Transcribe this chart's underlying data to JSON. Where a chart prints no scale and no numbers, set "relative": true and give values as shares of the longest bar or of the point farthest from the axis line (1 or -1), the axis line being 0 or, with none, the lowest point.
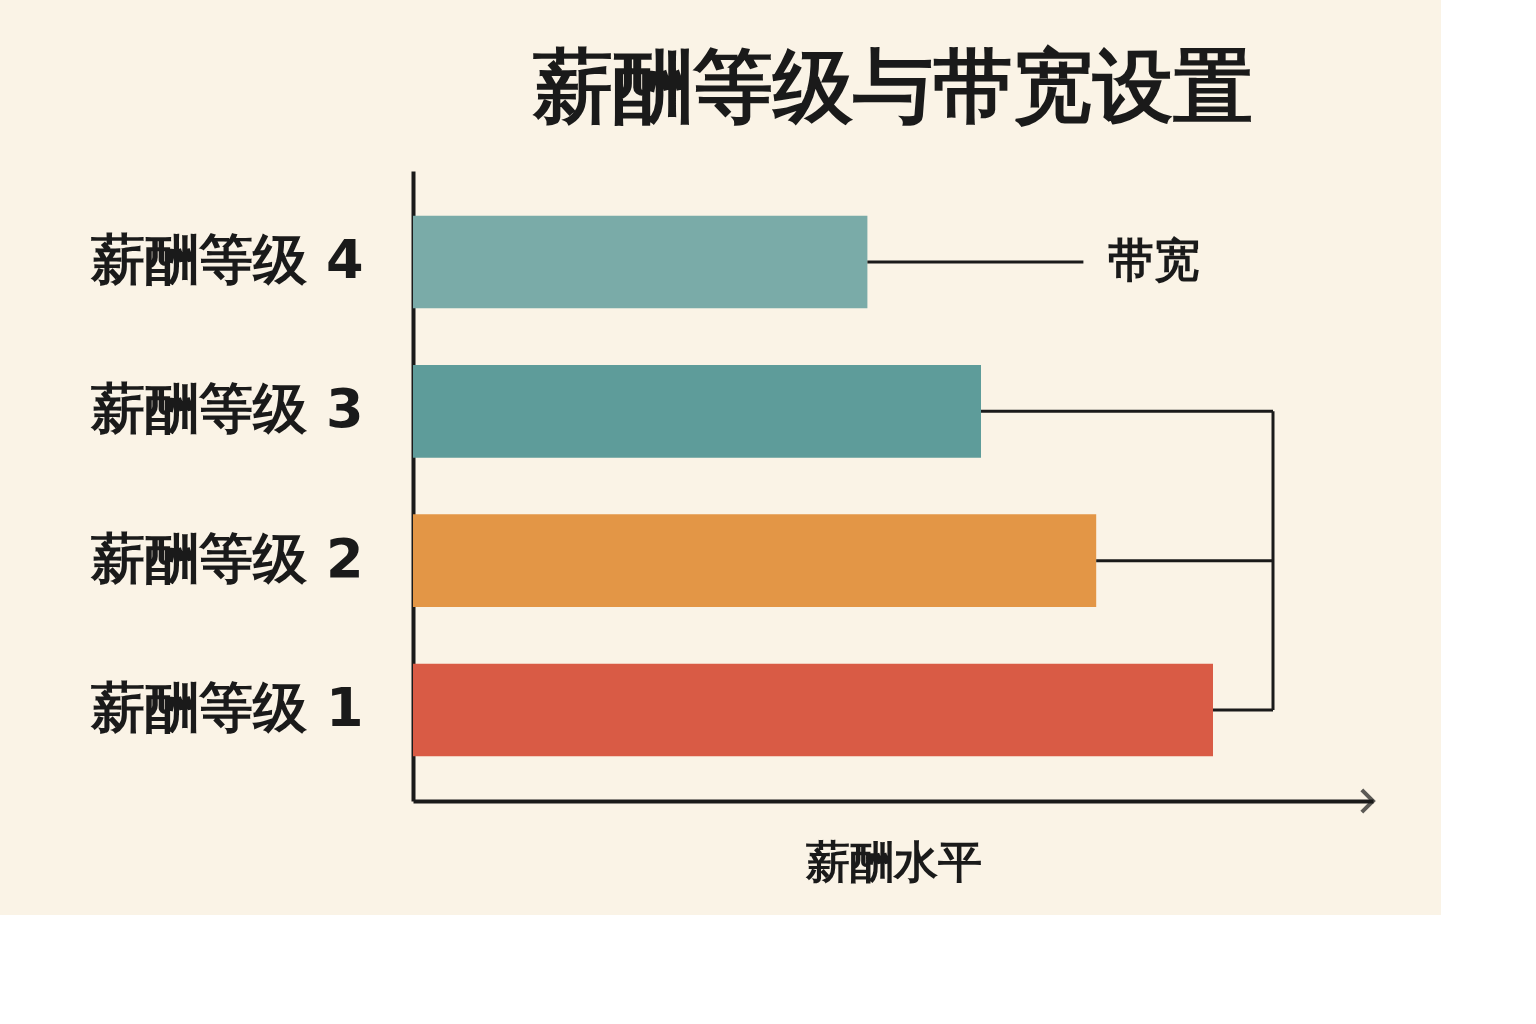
{
  "chart_data": {
    "type": "bar",
    "orientation": "horizontal",
    "relative": true,
    "title": "薪酬等级与带宽设置",
    "xlabel": "薪酬水平",
    "categories": [
      "薪酬等级 4",
      "薪酬等级 3",
      "薪酬等级 2",
      "薪酬等级 1"
    ],
    "values": [
      0.568,
      0.71,
      0.854,
      1
    ],
    "colors": [
      "#7aaba8",
      "#5e9c9a",
      "#e39646",
      "#d95b45"
    ],
    "annotations": [
      {
        "text": "带宽",
        "x": 0.568,
        "y": "薪酬等级 4"
      }
    ],
    "grid": false
  }
}
